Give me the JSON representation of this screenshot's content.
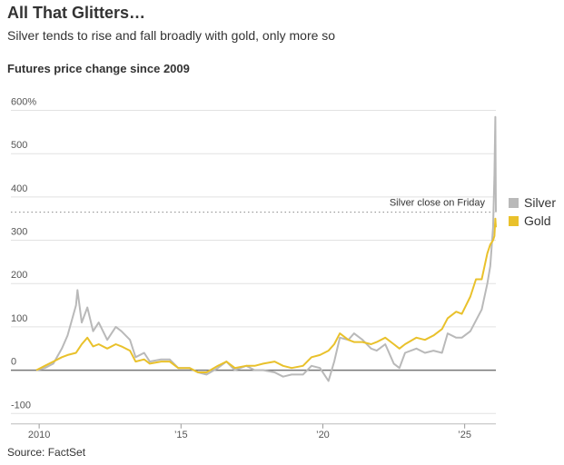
{
  "chart_data": {
    "type": "line",
    "title": "All That Glitters…",
    "subtitle": "Silver tends to rise and fall broadly with gold, only more so",
    "chart_title": "Futures price change since 2009",
    "source": "Source: FactSet",
    "annotations": [
      {
        "text": "Silver close on Friday",
        "value": 365
      }
    ],
    "x": [
      2009.9,
      2010.2,
      2010.5,
      2010.8,
      2011.0,
      2011.3,
      2011.35,
      2011.5,
      2011.7,
      2011.9,
      2012.1,
      2012.4,
      2012.7,
      2012.9,
      2013.2,
      2013.4,
      2013.7,
      2013.9,
      2014.3,
      2014.6,
      2014.9,
      2015.3,
      2015.6,
      2015.9,
      2016.3,
      2016.6,
      2016.9,
      2017.3,
      2017.6,
      2017.9,
      2018.3,
      2018.6,
      2018.9,
      2019.3,
      2019.6,
      2019.9,
      2020.2,
      2020.4,
      2020.6,
      2020.9,
      2021.1,
      2021.4,
      2021.7,
      2021.9,
      2022.2,
      2022.5,
      2022.7,
      2022.9,
      2023.3,
      2023.6,
      2023.9,
      2024.2,
      2024.4,
      2024.7,
      2024.9,
      2025.2,
      2025.4,
      2025.6,
      2025.8,
      2025.9,
      2026.0,
      2026.05,
      2026.08,
      2026.1
    ],
    "series": [
      {
        "name": "Silver",
        "color": "#b9b9b9",
        "values": [
          0,
          5,
          15,
          50,
          80,
          150,
          185,
          110,
          145,
          90,
          110,
          70,
          100,
          90,
          70,
          30,
          40,
          20,
          25,
          25,
          5,
          5,
          -5,
          -10,
          5,
          20,
          0,
          10,
          0,
          0,
          -5,
          -15,
          -10,
          -10,
          10,
          5,
          -25,
          20,
          75,
          70,
          85,
          70,
          50,
          45,
          60,
          15,
          5,
          40,
          50,
          40,
          45,
          40,
          85,
          75,
          75,
          90,
          115,
          140,
          200,
          240,
          330,
          450,
          585,
          365
        ]
      },
      {
        "name": "Gold",
        "color": "#e9c12b",
        "values": [
          0,
          10,
          20,
          30,
          35,
          40,
          45,
          60,
          75,
          55,
          60,
          50,
          60,
          55,
          45,
          20,
          25,
          15,
          20,
          20,
          5,
          5,
          -5,
          -5,
          10,
          20,
          5,
          10,
          10,
          15,
          20,
          10,
          5,
          10,
          30,
          35,
          45,
          60,
          85,
          70,
          65,
          65,
          60,
          65,
          75,
          60,
          50,
          60,
          75,
          70,
          80,
          95,
          120,
          135,
          130,
          170,
          210,
          210,
          270,
          290,
          300,
          310,
          350,
          330
        ]
      }
    ],
    "xlim": [
      2009.9,
      2026.1
    ],
    "xticks": [
      2010,
      {
        "value": 2015,
        "label": "’15"
      },
      {
        "value": 2020,
        "label": "’20"
      },
      {
        "value": 2025,
        "label": "’25"
      }
    ],
    "ylim": [
      -120,
      620
    ],
    "yticks": [
      {
        "value": 600,
        "label": "600%"
      },
      500,
      400,
      300,
      200,
      100,
      0,
      -100
    ],
    "grid": true
  }
}
